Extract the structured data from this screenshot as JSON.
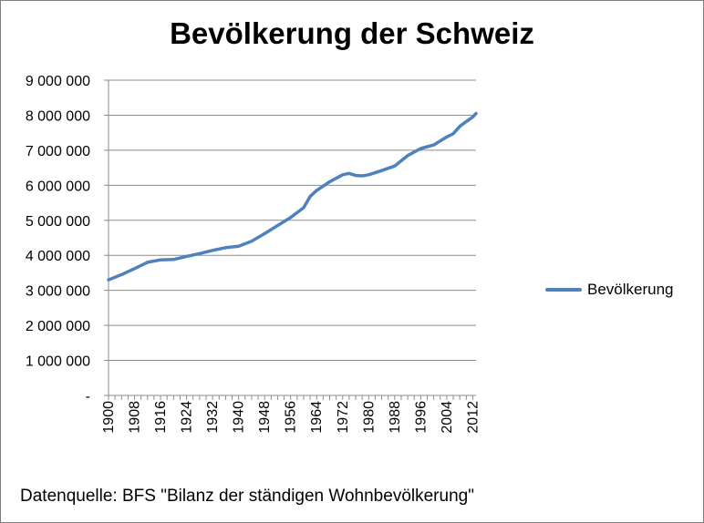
{
  "chart_data": {
    "type": "line",
    "title": "Bevölkerung der Schweiz",
    "xlabel": "",
    "ylabel": "",
    "ylim": [
      0,
      9000000
    ],
    "y_ticks": [
      "-",
      "1 000 000",
      "2 000 000",
      "3 000 000",
      "4 000 000",
      "5 000 000",
      "6 000 000",
      "7 000 000",
      "8 000 000",
      "9 000 000"
    ],
    "x_ticks": [
      "1900",
      "1908",
      "1916",
      "1924",
      "1932",
      "1940",
      "1948",
      "1956",
      "1964",
      "1972",
      "1980",
      "1988",
      "1996",
      "2004",
      "2012"
    ],
    "grid": true,
    "legend_position": "right",
    "series": [
      {
        "name": "Bevölkerung",
        "color": "#4f81bd",
        "x": [
          1900,
          1904,
          1908,
          1912,
          1916,
          1920,
          1924,
          1928,
          1932,
          1936,
          1940,
          1944,
          1948,
          1952,
          1956,
          1960,
          1962,
          1964,
          1968,
          1972,
          1974,
          1976,
          1978,
          1980,
          1984,
          1988,
          1992,
          1996,
          2000,
          2004,
          2006,
          2008,
          2010,
          2012,
          2013
        ],
        "values": [
          3300000,
          3450000,
          3620000,
          3800000,
          3870000,
          3880000,
          3970000,
          4050000,
          4140000,
          4220000,
          4260000,
          4400000,
          4620000,
          4850000,
          5080000,
          5360000,
          5680000,
          5850000,
          6100000,
          6300000,
          6340000,
          6280000,
          6270000,
          6300000,
          6420000,
          6550000,
          6850000,
          7050000,
          7150000,
          7380000,
          7470000,
          7680000,
          7820000,
          7950000,
          8050000
        ]
      }
    ]
  },
  "footer": {
    "source": "Datenquelle:  BFS \"Bilanz der ständigen Wohnbevölkerung\""
  }
}
